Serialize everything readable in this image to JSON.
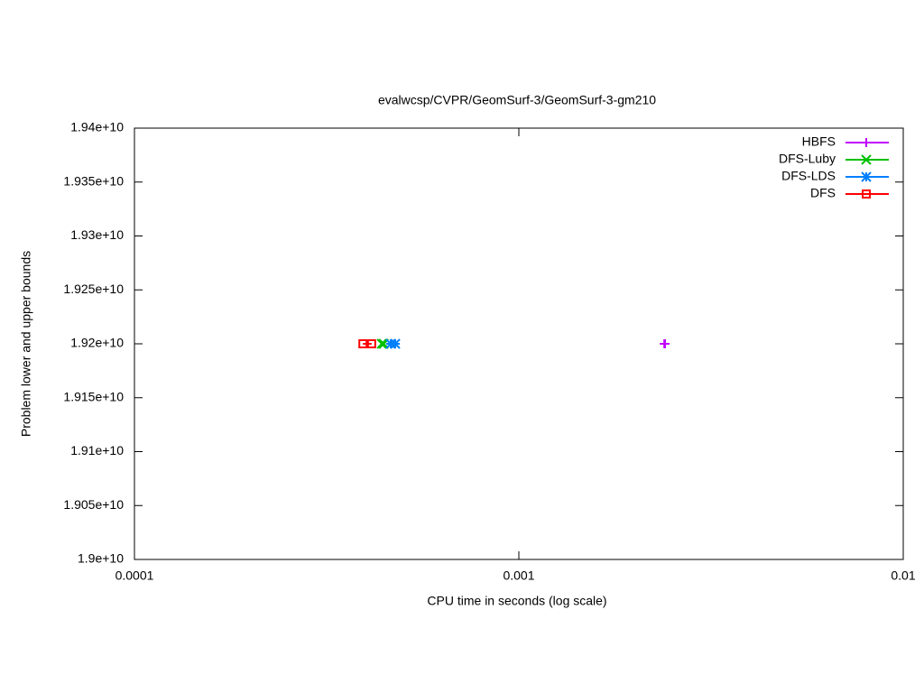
{
  "chart_data": {
    "type": "line",
    "title": "evalwcsp/CVPR/GeomSurf-3/GeomSurf-3-gm210",
    "xlabel": "CPU time in seconds (log scale)",
    "ylabel": "Problem lower and upper bounds",
    "xscale": "log",
    "xlim": [
      0.0001,
      0.01
    ],
    "xticks": [
      0.0001,
      0.001,
      0.01
    ],
    "ylim": [
      19000000000,
      19400000000
    ],
    "yticks": [
      {
        "value": 19000000000,
        "label": "1.9e+10"
      },
      {
        "value": 19050000000,
        "label": "1.905e+10"
      },
      {
        "value": 19100000000,
        "label": "1.91e+10"
      },
      {
        "value": 19150000000,
        "label": "1.915e+10"
      },
      {
        "value": 19200000000,
        "label": "1.92e+10"
      },
      {
        "value": 19250000000,
        "label": "1.925e+10"
      },
      {
        "value": 19300000000,
        "label": "1.93e+10"
      },
      {
        "value": 19350000000,
        "label": "1.935e+10"
      },
      {
        "value": 19400000000,
        "label": "1.94e+10"
      }
    ],
    "grid": false,
    "legend": "top-right",
    "series": [
      {
        "name": "HBFS",
        "color": "#c000ff",
        "marker": "plus",
        "x": [
          0.00239,
          0.0024
        ],
        "values": [
          19200000000,
          19200000000
        ]
      },
      {
        "name": "DFS-Luby",
        "color": "#00c000",
        "marker": "cross",
        "x": [
          0.00044,
          0.000445
        ],
        "values": [
          19200000000,
          19200000000
        ]
      },
      {
        "name": "DFS-LDS",
        "color": "#0080ff",
        "marker": "star",
        "x": [
          0.000464,
          0.000477
        ],
        "values": [
          19200000000,
          19200000000
        ]
      },
      {
        "name": "DFS",
        "color": "#ff0000",
        "marker": "square",
        "x": [
          0.000393,
          0.000414
        ],
        "values": [
          19200000000,
          19200000000
        ]
      }
    ]
  }
}
